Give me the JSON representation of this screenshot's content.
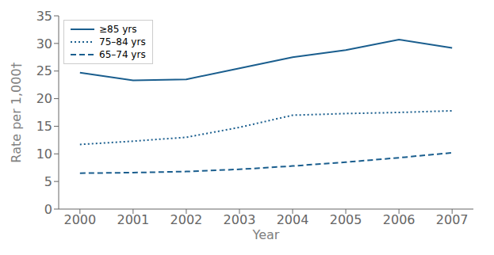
{
  "chart_data": {
    "type": "line",
    "x": [
      2000,
      2001,
      2002,
      2003,
      2004,
      2005,
      2006,
      2007
    ],
    "series": [
      {
        "name": "≥85 yrs",
        "color": "#1a5e8e",
        "line_style": "solid",
        "values": [
          24.7,
          23.3,
          23.5,
          25.5,
          27.5,
          28.8,
          30.7,
          29.2
        ]
      },
      {
        "name": "75–84 yrs",
        "color": "#1a5e8e",
        "line_style": "dotted",
        "values": [
          11.7,
          12.3,
          13.0,
          14.8,
          17.0,
          17.3,
          17.5,
          17.8
        ]
      },
      {
        "name": "65–74 yrs",
        "color": "#1a5e8e",
        "line_style": "dashed",
        "values": [
          6.5,
          6.6,
          6.8,
          7.2,
          7.8,
          8.5,
          9.3,
          10.2
        ]
      }
    ],
    "xlabel": "Year",
    "ylabel": "Rate per 1,000†",
    "xlim": [
      1999.6,
      2007.4
    ],
    "xticks": [
      2000,
      2001,
      2002,
      2003,
      2004,
      2005,
      2006,
      2007
    ],
    "ylim": [
      0,
      35
    ],
    "yticks": [
      0,
      5,
      10,
      15,
      20,
      25,
      30,
      35
    ],
    "grid": false,
    "legend": "upper left"
  }
}
